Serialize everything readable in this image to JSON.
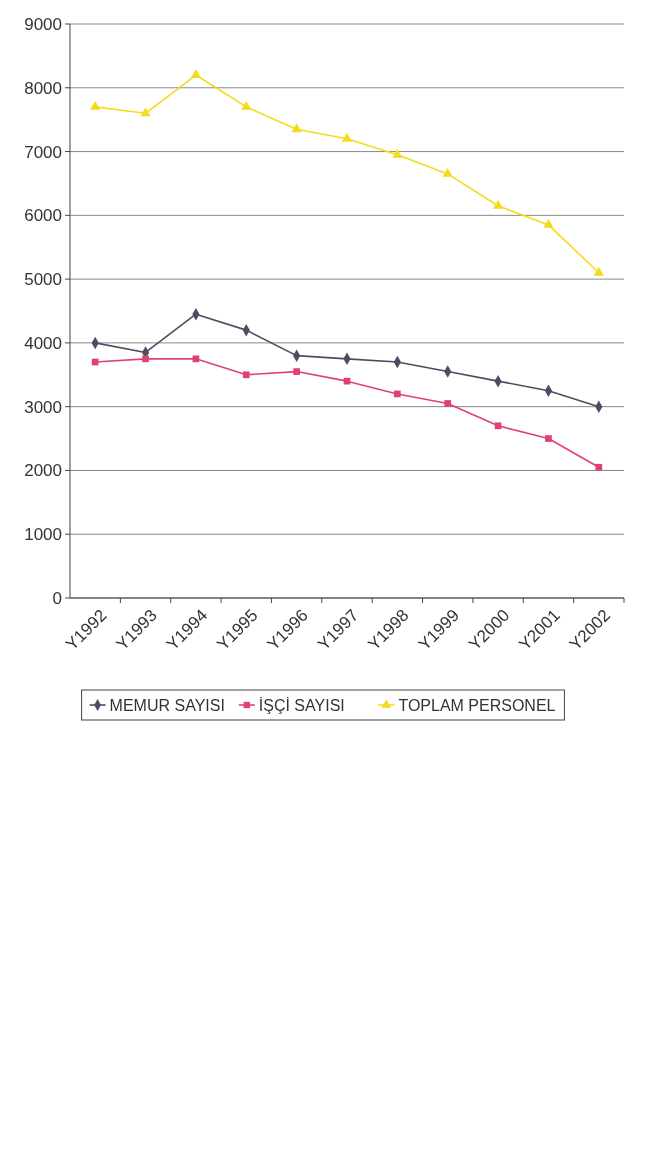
{
  "chart_data": {
    "type": "line",
    "categories": [
      "Y1992",
      "Y1993",
      "Y1994",
      "Y1995",
      "Y1996",
      "Y1997",
      "Y1998",
      "Y1999",
      "Y2000",
      "Y2001",
      "Y2002"
    ],
    "series": [
      {
        "name": "MEMUR SAYISI",
        "color": "#4a4e62",
        "marker": "diamond",
        "values": [
          4000,
          3850,
          4450,
          4200,
          3800,
          3750,
          3700,
          3550,
          3400,
          3250,
          3000
        ]
      },
      {
        "name": "İŞÇİ SAYISI",
        "color": "#e0407a",
        "marker": "square",
        "values": [
          3700,
          3750,
          3750,
          3500,
          3550,
          3400,
          3200,
          3050,
          2700,
          2500,
          2050
        ]
      },
      {
        "name": "TOPLAM PERSONEL",
        "color": "#f2dc1c",
        "marker": "triangle",
        "values": [
          7700,
          7600,
          8200,
          7700,
          7350,
          7200,
          6950,
          6650,
          6150,
          5850,
          5100
        ]
      }
    ],
    "ylim": [
      0,
      9000
    ],
    "yticks": [
      0,
      1000,
      2000,
      3000,
      4000,
      5000,
      6000,
      7000,
      8000,
      9000
    ],
    "grid": "y",
    "legend": "bottom"
  }
}
